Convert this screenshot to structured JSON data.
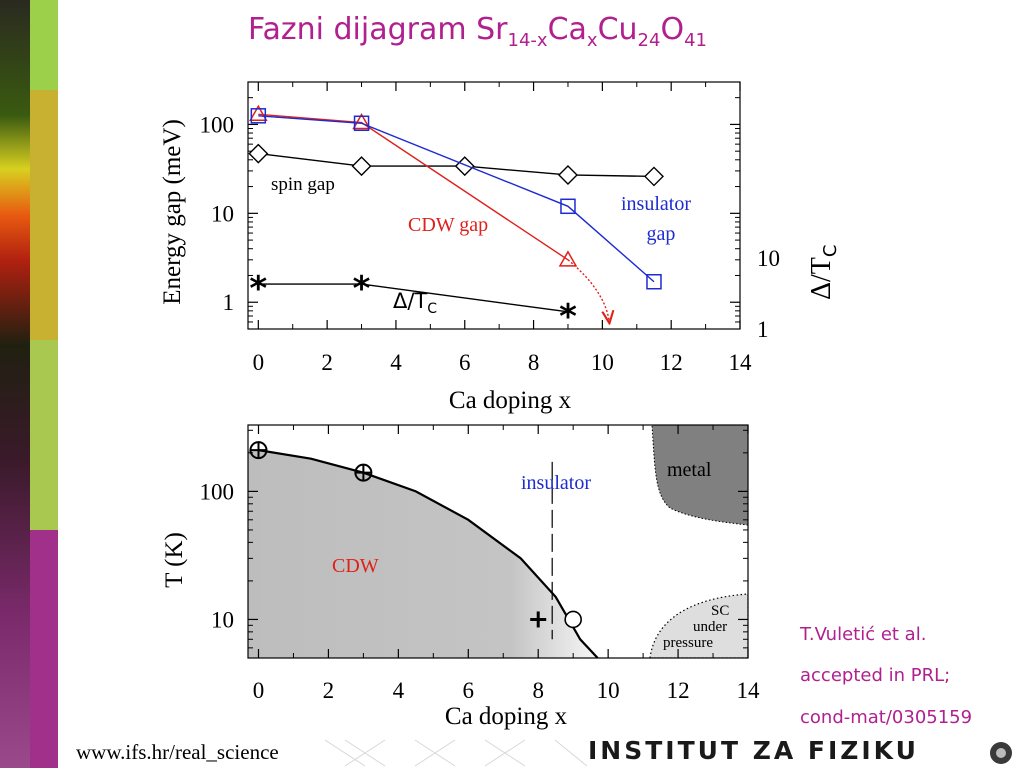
{
  "slide": {
    "title_main": "Fazni dijagram Sr",
    "title_sub1": "14-x",
    "title_ca": "Ca",
    "title_sub2": "x",
    "title_cu": "Cu",
    "title_sub3": "24",
    "title_o": "O",
    "title_sub4": "41",
    "citation": [
      "T.Vuletić et al.",
      "accepted in PRL;",
      "cond-mat/0305159"
    ],
    "footer_url": "www.ifs.hr/real_science",
    "institute": "INSTITUT ZA FIZIKU"
  },
  "colors": {
    "title": "#b0208f",
    "cdw": "#e0201a",
    "insulator": "#1d2bd0",
    "black": "#000000",
    "cdw_region": "#c2c2c2",
    "metal_region": "#808080",
    "sc_region": "#dedede"
  },
  "chart_data": [
    {
      "type": "line",
      "ylabel": "Energy gap (meV)",
      "xlabel": "Ca doping x",
      "y2label": "Δ/T",
      "y2label_sub": "C",
      "yscale": "log",
      "xlim": [
        -0.3,
        14
      ],
      "ylim": [
        0.5,
        300
      ],
      "xticks": [
        "0",
        "2",
        "4",
        "6",
        "8",
        "10",
        "12",
        "14"
      ],
      "yticks": [
        "1",
        "10",
        "100"
      ],
      "y2ticks": [
        "1",
        "10"
      ],
      "series": [
        {
          "name": "spin gap",
          "marker": "diamond",
          "color": "#000000",
          "x": [
            0,
            3,
            6,
            9,
            11.5
          ],
          "y": [
            47,
            34,
            34,
            27,
            26
          ]
        },
        {
          "name": "CDW gap",
          "marker": "triangle",
          "color": "#e0201a",
          "x": [
            0,
            3,
            9
          ],
          "y": [
            130,
            105,
            3
          ],
          "extrapolated_to": [
            10.2,
            0.6
          ]
        },
        {
          "name": "insulator gap",
          "marker": "square",
          "color": "#1d2bd0",
          "x": [
            0,
            3,
            9,
            11.5
          ],
          "y": [
            125,
            103,
            12,
            1.7
          ]
        },
        {
          "name": "Δ/T",
          "name_sub": "C",
          "marker": "star",
          "color": "#000000",
          "x": [
            0,
            3,
            9
          ],
          "y": [
            1.6,
            1.6,
            0.78
          ]
        }
      ],
      "labels": {
        "spin": "spin gap",
        "cdw": "CDW gap",
        "ins1": "insulator",
        "ins2": "gap",
        "dt": "Δ/T",
        "dt_sub": "C"
      }
    },
    {
      "type": "area",
      "ylabel": "T (K)",
      "xlabel": "Ca doping x",
      "yscale": "log",
      "xlim": [
        -0.3,
        14
      ],
      "ylim": [
        5,
        330
      ],
      "xticks": [
        "0",
        "2",
        "4",
        "6",
        "8",
        "10",
        "12",
        "14"
      ],
      "yticks": [
        "10",
        "100"
      ],
      "regions": {
        "cdw": "CDW",
        "insulator": "insulator",
        "metal": "metal",
        "sc1": "SC",
        "sc2": "under",
        "sc3": "pressure"
      },
      "boundary": {
        "x": [
          0,
          1.5,
          3,
          4.5,
          6,
          7.5,
          8.5,
          9.2,
          9.7
        ],
        "y": [
          210,
          180,
          140,
          100,
          60,
          30,
          15,
          7,
          5
        ]
      },
      "insulator_line_x": 8.4,
      "points": [
        {
          "marker": "circle-plus",
          "x": 0,
          "y": 210
        },
        {
          "marker": "circle-plus",
          "x": 3,
          "y": 140
        },
        {
          "marker": "plus",
          "x": 8,
          "y": 10
        },
        {
          "marker": "circle",
          "x": 9,
          "y": 10
        }
      ]
    }
  ]
}
